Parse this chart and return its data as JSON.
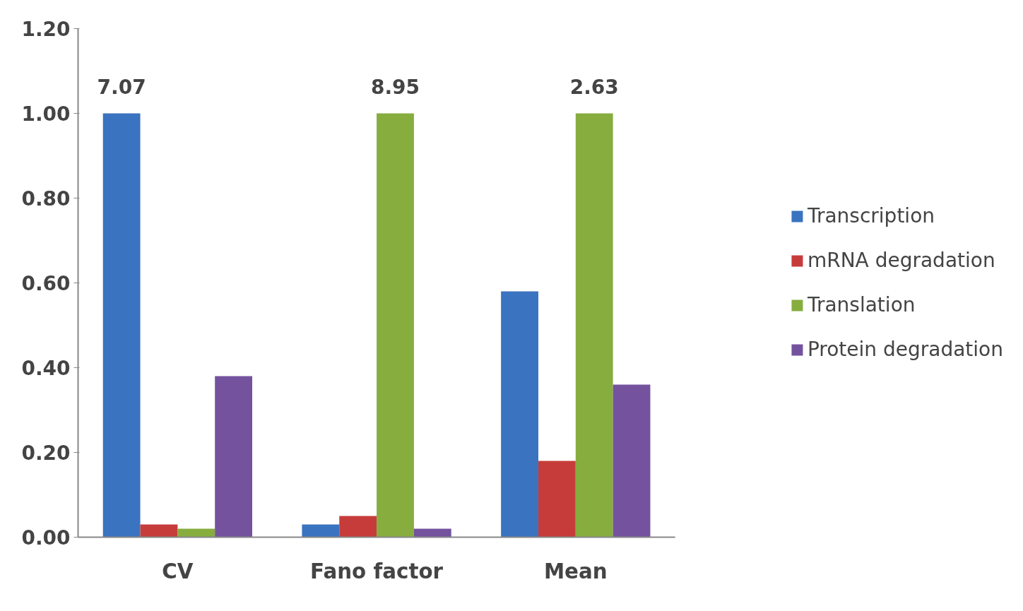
{
  "chart_data": {
    "type": "bar",
    "categories": [
      "CV",
      "Fano factor",
      "Mean"
    ],
    "series": [
      {
        "name": "Transcription",
        "color": "#3a73bf",
        "values": [
          1.0,
          0.03,
          0.58
        ]
      },
      {
        "name": "mRNA degradation",
        "color": "#c63c3a",
        "values": [
          0.03,
          0.05,
          0.18
        ]
      },
      {
        "name": "Translation",
        "color": "#86ad3e",
        "values": [
          0.02,
          1.0,
          1.0
        ]
      },
      {
        "name": "Protein degradation",
        "color": "#74529e",
        "values": [
          0.38,
          0.02,
          0.36
        ]
      }
    ],
    "ylim": [
      0,
      1.2
    ],
    "yticks": [
      {
        "value": 0,
        "label": "0.00"
      },
      {
        "value": 0.2,
        "label": "0.20"
      },
      {
        "value": 0.4,
        "label": "0.40"
      },
      {
        "value": 0.6,
        "label": "0.60"
      },
      {
        "value": 0.8,
        "label": "0.80"
      },
      {
        "value": 1.0,
        "label": "1.00"
      },
      {
        "value": 1.2,
        "label": "1.20"
      }
    ],
    "annotations": [
      "7.07",
      "8.95",
      "2.63"
    ],
    "grid": false,
    "legend": "right"
  }
}
